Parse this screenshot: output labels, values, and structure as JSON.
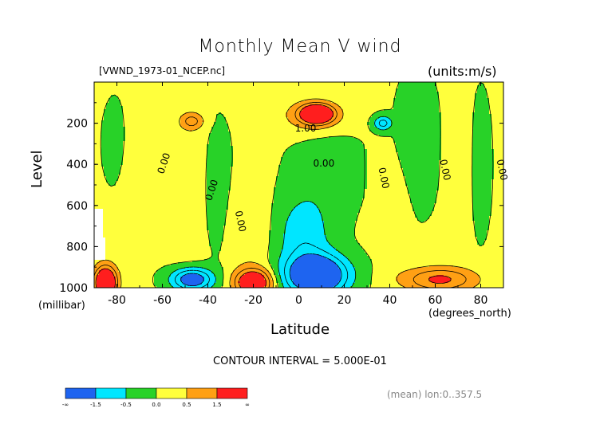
{
  "chart_data": {
    "type": "heatmap",
    "title": "Monthly Mean V wind",
    "source_label": "[VWND_1973-01_NCEP.nc]",
    "units_label": "(units:m/s)",
    "xlabel": "Latitude",
    "x_unit_label": "(degrees_north)",
    "ylabel": "Level",
    "y_unit_label": "(millibar)",
    "xlim": [
      -90,
      90
    ],
    "ylim": [
      1000,
      0
    ],
    "x_ticks": [
      -80,
      -60,
      -40,
      -20,
      0,
      20,
      40,
      60,
      80
    ],
    "y_ticks": [
      200,
      400,
      600,
      800,
      1000
    ],
    "contour_interval_text": "CONTOUR INTERVAL = 5.000E-01",
    "mean_label": "(mean) lon:0..357.5",
    "contour_labels": [
      {
        "text": "1.00",
        "lat": 3,
        "lev": 240
      },
      {
        "text": "0.00",
        "lat": 11,
        "lev": 410
      },
      {
        "text": "0.00",
        "lat": -58,
        "lev": 400
      },
      {
        "text": "0.00",
        "lat": -37,
        "lev": 530
      },
      {
        "text": "0.00",
        "lat": -27,
        "lev": 680
      },
      {
        "text": "0.00",
        "lat": 36,
        "lev": 470
      },
      {
        "text": "0.00",
        "lat": 63,
        "lev": 430
      },
      {
        "text": "0.00",
        "lat": 88,
        "lev": 430
      }
    ],
    "colorbar": {
      "tick_labels": [
        "-∞",
        "-1.5",
        "-0.5",
        "0.0",
        "0.5",
        "1.5",
        "∞"
      ],
      "colors": [
        "#1e64f0",
        "#00e6ff",
        "#28d228",
        "#ffff3c",
        "#ffa014",
        "#ff1e1e"
      ]
    },
    "levels": [
      -1.5,
      -1.0,
      -0.5,
      0.0,
      0.5,
      1.0,
      1.5
    ],
    "features": [
      {
        "type": "max",
        "lat": 8,
        "lev": 155,
        "amp": 2.9,
        "slat": 7,
        "slev": 45,
        "note": "upper-level jet northward wind"
      },
      {
        "type": "max",
        "lat": 6,
        "lev": 165,
        "amp": 0.7,
        "slat": 15,
        "slev": 85
      },
      {
        "type": "max",
        "lat": -47,
        "lev": 190,
        "amp": 1.1,
        "slat": 5,
        "slev": 40
      },
      {
        "type": "min",
        "lat": 37,
        "lev": 200,
        "amp": -1.3,
        "slat": 4,
        "slev": 35
      },
      {
        "type": "min",
        "lat": 8,
        "lev": 940,
        "amp": -3.0,
        "slat": 13,
        "slev": 95,
        "note": "low-level southward flow"
      },
      {
        "type": "min",
        "lat": 2,
        "lev": 750,
        "amp": -0.9,
        "slat": 12,
        "slev": 200
      },
      {
        "type": "min",
        "lat": -47,
        "lev": 960,
        "amp": -2.2,
        "slat": 9,
        "slev": 55
      },
      {
        "type": "max",
        "lat": -20,
        "lev": 975,
        "amp": 2.6,
        "slat": 8,
        "slev": 65
      },
      {
        "type": "max",
        "lat": -85,
        "lev": 975,
        "amp": 3.0,
        "slat": 5,
        "slev": 80
      },
      {
        "type": "max",
        "lat": 62,
        "lev": 960,
        "amp": 1.6,
        "slat": 16,
        "slev": 60
      }
    ]
  }
}
